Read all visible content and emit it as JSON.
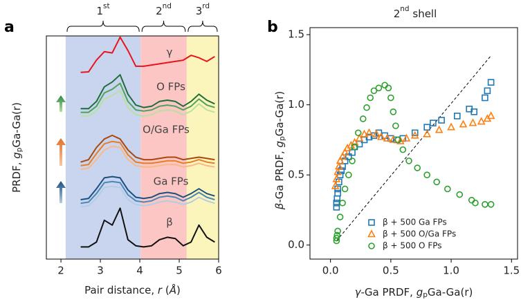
{
  "chart_data": [
    {
      "type": "line",
      "panel_label": "a",
      "xlabel": [
        {
          "text": "Pair distance, "
        },
        {
          "text": "r",
          "style": "italic"
        },
        {
          "text": " ("
        },
        {
          "text": "Å",
          "style": "italic"
        },
        {
          "text": ")"
        }
      ],
      "ylabel": [
        {
          "text": "PRDF, "
        },
        {
          "text": "g",
          "style": "italic"
        },
        {
          "text": "p",
          "style": "sub"
        },
        {
          "text": "Ga-Ga(r)"
        }
      ],
      "xlim": [
        1.63,
        6
      ],
      "xticks": [
        2,
        3,
        4,
        5,
        6
      ],
      "ylim": [
        0,
        9.2
      ],
      "regions": [
        {
          "label": [
            {
              "text": "1"
            },
            {
              "text": "st",
              "style": "sup"
            }
          ],
          "range": [
            2.12,
            4.02
          ],
          "color": "#c9d5ee"
        },
        {
          "label": [
            {
              "text": "2"
            },
            {
              "text": "nd",
              "style": "sup"
            }
          ],
          "range": [
            4.02,
            5.19
          ],
          "color": "#fbc6c4"
        },
        {
          "label": [
            {
              "text": "3"
            },
            {
              "text": "rd",
              "style": "sup"
            }
          ],
          "range": [
            5.19,
            6
          ],
          "color": "#fbf5bb"
        }
      ],
      "x": [
        2.5,
        2.7,
        2.9,
        3.1,
        3.3,
        3.5,
        3.7,
        3.9,
        4.1,
        4.3,
        4.5,
        4.7,
        4.9,
        5.1,
        5.3,
        5.5,
        5.7,
        5.9
      ],
      "series": [
        {
          "name": "γ",
          "color": "#e8141b",
          "values": [
            7.7,
            7.72,
            8.2,
            8.55,
            8.5,
            9.15,
            8.6,
            7.95,
            7.95,
            8.0,
            8.05,
            8.1,
            8.15,
            8.2,
            8.4,
            8.3,
            8.15,
            8.35
          ]
        },
        {
          "name": "O FPs",
          "color": "#1e6b3c",
          "values": [
            6.2,
            6.2,
            6.5,
            7.1,
            7.3,
            7.6,
            6.8,
            6.35,
            6.25,
            6.3,
            6.5,
            6.55,
            6.5,
            6.3,
            6.5,
            6.8,
            6.55,
            6.4
          ]
        },
        {
          "color": "#4ea35a",
          "values": [
            6.05,
            6.05,
            6.3,
            6.85,
            7.0,
            7.25,
            6.5,
            6.15,
            6.1,
            6.15,
            6.3,
            6.35,
            6.3,
            6.15,
            6.3,
            6.6,
            6.35,
            6.25
          ]
        },
        {
          "color": "#b9e0a0",
          "values": [
            5.9,
            5.9,
            6.1,
            6.6,
            6.75,
            6.95,
            6.25,
            5.95,
            5.9,
            5.95,
            6.1,
            6.15,
            6.1,
            5.95,
            6.1,
            6.4,
            6.15,
            6.05
          ]
        },
        {
          "name": "O/Ga FPs",
          "color": "#a8480f",
          "values": [
            4.0,
            4.1,
            4.6,
            4.95,
            5.1,
            4.95,
            4.5,
            4.2,
            4.1,
            4.1,
            4.15,
            4.2,
            4.2,
            4.1,
            4.15,
            4.2,
            4.15,
            4.1
          ]
        },
        {
          "color": "#e87d24",
          "values": [
            3.85,
            3.9,
            4.35,
            4.75,
            4.85,
            4.8,
            4.3,
            4.0,
            3.95,
            3.95,
            4.0,
            4.05,
            4.05,
            3.95,
            4.0,
            4.1,
            4.0,
            3.95
          ]
        },
        {
          "color": "#f7b98a",
          "values": [
            3.7,
            3.75,
            4.1,
            4.5,
            4.65,
            4.6,
            4.1,
            3.85,
            3.8,
            3.8,
            3.85,
            3.9,
            3.9,
            3.8,
            3.85,
            3.95,
            3.85,
            3.8
          ]
        },
        {
          "name": "Ga FPs",
          "color": "#1b4f80",
          "values": [
            2.45,
            2.5,
            2.9,
            3.35,
            3.4,
            3.35,
            2.85,
            2.55,
            2.5,
            2.55,
            2.7,
            2.75,
            2.7,
            2.55,
            2.7,
            2.9,
            2.7,
            2.6
          ]
        },
        {
          "color": "#4a88b8",
          "values": [
            2.3,
            2.35,
            2.7,
            3.15,
            3.2,
            3.15,
            2.65,
            2.4,
            2.35,
            2.4,
            2.55,
            2.6,
            2.55,
            2.4,
            2.55,
            2.75,
            2.55,
            2.45
          ]
        },
        {
          "color": "#b5cde3",
          "values": [
            2.15,
            2.2,
            2.5,
            2.95,
            3.0,
            2.95,
            2.45,
            2.25,
            2.2,
            2.25,
            2.35,
            2.4,
            2.35,
            2.25,
            2.35,
            2.55,
            2.4,
            2.3
          ]
        },
        {
          "name": "β",
          "color": "#111111",
          "values": [
            0.5,
            0.5,
            0.7,
            1.6,
            1.4,
            2.1,
            0.8,
            0.55,
            0.5,
            0.55,
            0.8,
            0.9,
            0.85,
            0.55,
            0.7,
            1.4,
            0.9,
            0.7
          ]
        }
      ]
    },
    {
      "type": "scatter",
      "panel_label": "b",
      "title": [
        {
          "text": "2"
        },
        {
          "text": "nd",
          "style": "sup"
        },
        {
          "text": " shell"
        }
      ],
      "xlabel": [
        {
          "text": "γ",
          "style": "italic"
        },
        {
          "text": "-Ga PRDF, "
        },
        {
          "text": "g",
          "style": "italic"
        },
        {
          "text": "p",
          "style": "sub"
        },
        {
          "text": "Ga-Ga(r)"
        }
      ],
      "ylabel": [
        {
          "text": "β",
          "style": "italic"
        },
        {
          "text": "-Ga PRDF, "
        },
        {
          "text": "g",
          "style": "italic"
        },
        {
          "text": "p",
          "style": "sub"
        },
        {
          "text": "Ga-Ga(r)"
        }
      ],
      "xlim": [
        -0.17,
        1.55
      ],
      "ylim": [
        -0.1,
        1.55
      ],
      "xticks": [
        {
          "value": 0,
          "label": "0.0"
        },
        {
          "value": 0.5,
          "label": "0.5"
        },
        {
          "value": 1,
          "label": "1.0"
        },
        {
          "value": 1.5,
          "label": "1.5"
        }
      ],
      "yticks": [
        {
          "value": 0,
          "label": "0.0"
        },
        {
          "value": 0.5,
          "label": "0.5"
        },
        {
          "value": 1,
          "label": "1.0"
        },
        {
          "value": 1.5,
          "label": "1.5"
        }
      ],
      "reference_line": {
        "x": [
          0.05,
          1.33
        ],
        "y": [
          0.03,
          1.35
        ]
      },
      "series": [
        {
          "name": "β + 500 Ga FPs",
          "color": "#1f77b4",
          "marker": "square",
          "x": [
            0.05,
            0.05,
            0.055,
            0.06,
            0.06,
            0.07,
            0.08,
            0.09,
            0.1,
            0.12,
            0.15,
            0.18,
            0.2,
            0.24,
            0.28,
            0.32,
            0.36,
            0.4,
            0.45,
            0.5,
            0.55,
            0.6,
            0.7,
            0.8,
            0.85,
            0.92,
            1.05,
            1.15,
            1.19,
            1.28,
            1.3,
            1.33
          ],
          "values": [
            0.27,
            0.3,
            0.33,
            0.37,
            0.4,
            0.45,
            0.5,
            0.53,
            0.56,
            0.6,
            0.63,
            0.66,
            0.7,
            0.72,
            0.75,
            0.77,
            0.78,
            0.8,
            0.78,
            0.76,
            0.75,
            0.76,
            0.8,
            0.84,
            0.87,
            0.89,
            0.92,
            0.97,
            0.95,
            1.05,
            1.1,
            1.16
          ]
        },
        {
          "name": "β + 500 O/Ga FPs",
          "color": "#ff7f0e",
          "marker": "triangle",
          "x": [
            0.04,
            0.05,
            0.06,
            0.07,
            0.08,
            0.1,
            0.12,
            0.14,
            0.17,
            0.2,
            0.24,
            0.28,
            0.32,
            0.38,
            0.42,
            0.47,
            0.52,
            0.58,
            0.63,
            0.7,
            0.8,
            0.9,
            1.0,
            1.1,
            1.18,
            1.25,
            1.3,
            1.33
          ],
          "values": [
            0.42,
            0.47,
            0.52,
            0.56,
            0.6,
            0.63,
            0.66,
            0.69,
            0.71,
            0.73,
            0.76,
            0.79,
            0.8,
            0.79,
            0.77,
            0.76,
            0.75,
            0.74,
            0.76,
            0.78,
            0.79,
            0.82,
            0.84,
            0.86,
            0.87,
            0.88,
            0.9,
            0.92
          ]
        },
        {
          "name": "β + 500 O FPs",
          "color": "#2ca02c",
          "marker": "circle",
          "x": [
            0.05,
            0.05,
            0.055,
            0.06,
            0.08,
            0.1,
            0.12,
            0.15,
            0.18,
            0.2,
            0.23,
            0.27,
            0.3,
            0.33,
            0.36,
            0.4,
            0.45,
            0.48,
            0.5,
            0.52,
            0.54,
            0.56,
            0.6,
            0.65,
            0.72,
            0.8,
            0.88,
            0.97,
            1.07,
            1.17,
            1.2,
            1.28,
            1.33
          ],
          "values": [
            0.03,
            0.05,
            0.07,
            0.1,
            0.2,
            0.3,
            0.4,
            0.5,
            0.6,
            0.7,
            0.8,
            0.9,
            0.98,
            1.05,
            1.1,
            1.12,
            1.14,
            1.12,
            1.05,
            0.95,
            0.85,
            0.75,
            0.68,
            0.6,
            0.55,
            0.5,
            0.45,
            0.4,
            0.36,
            0.32,
            0.3,
            0.29,
            0.29
          ]
        }
      ]
    }
  ]
}
